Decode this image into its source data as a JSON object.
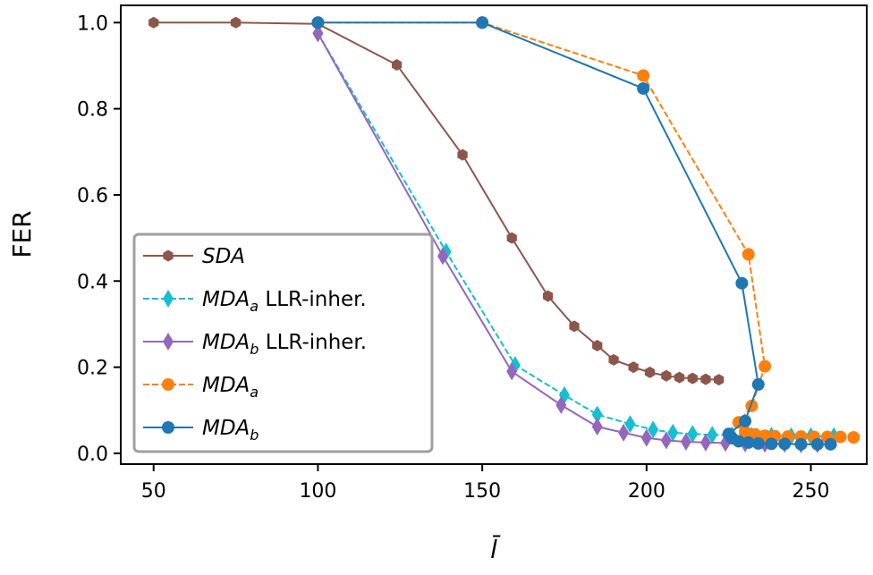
{
  "chart_data": {
    "type": "line",
    "xlabel": "l̄",
    "ylabel": "FER",
    "xlim": [
      40,
      267
    ],
    "ylim": [
      -0.025,
      1.04
    ],
    "xticks": [
      50,
      100,
      150,
      200,
      250
    ],
    "yticks": [
      0.0,
      0.2,
      0.4,
      0.6,
      0.8,
      1.0
    ],
    "xtick_labels": [
      "50",
      "100",
      "150",
      "200",
      "250"
    ],
    "ytick_labels": [
      "0.0",
      "0.2",
      "0.4",
      "0.6",
      "0.8",
      "1.0"
    ],
    "legend_position": "lower-left",
    "series": [
      {
        "name": "SDA",
        "legend_main": "SDA",
        "legend_sub": "",
        "legend_suffix": "",
        "color": "#8c564b",
        "marker": "hexagon",
        "dashed": false,
        "x": [
          50,
          75,
          100,
          124,
          144,
          159,
          170,
          178,
          185,
          190,
          196,
          201,
          206,
          210,
          214,
          218,
          222
        ],
        "y": [
          1.0,
          1.0,
          0.997,
          0.902,
          0.693,
          0.5,
          0.365,
          0.295,
          0.25,
          0.217,
          0.2,
          0.188,
          0.18,
          0.176,
          0.174,
          0.172,
          0.171
        ]
      },
      {
        "name": "MDA_a LLR-inher.",
        "legend_main": "MDA",
        "legend_sub": "a",
        "legend_suffix": " LLR-inher.",
        "color": "#17becf",
        "marker": "diamond",
        "dashed": true,
        "x": [
          100,
          139,
          160,
          175,
          185,
          195,
          202,
          208,
          214,
          220,
          226,
          232,
          238,
          244,
          250,
          257
        ],
        "y": [
          0.975,
          0.468,
          0.205,
          0.135,
          0.09,
          0.068,
          0.055,
          0.048,
          0.045,
          0.043,
          0.042,
          0.041,
          0.041,
          0.04,
          0.04,
          0.04
        ]
      },
      {
        "name": "MDA_b LLR-inher.",
        "legend_main": "MDA",
        "legend_sub": "b",
        "legend_suffix": " LLR-inher.",
        "color": "#9467bd",
        "marker": "diamond",
        "dashed": false,
        "x": [
          100,
          138,
          159,
          174,
          185,
          193,
          200,
          206,
          212,
          218,
          224,
          230,
          236,
          242,
          247,
          252
        ],
        "y": [
          0.975,
          0.458,
          0.19,
          0.112,
          0.062,
          0.048,
          0.036,
          0.03,
          0.027,
          0.025,
          0.024,
          0.023,
          0.022,
          0.022,
          0.021,
          0.021
        ]
      },
      {
        "name": "MDA_a",
        "legend_main": "MDA",
        "legend_sub": "a",
        "legend_suffix": "",
        "color": "#ff7f0e",
        "marker": "circle",
        "dashed": true,
        "x": [
          100,
          150,
          199,
          231,
          236,
          232,
          228,
          230,
          233,
          236,
          239,
          243,
          247,
          251,
          255,
          259,
          263
        ],
        "y": [
          1.0,
          1.0,
          0.877,
          0.462,
          0.202,
          0.11,
          0.072,
          0.05,
          0.044,
          0.041,
          0.04,
          0.039,
          0.039,
          0.038,
          0.038,
          0.038,
          0.037
        ]
      },
      {
        "name": "MDA_b",
        "legend_main": "MDA",
        "legend_sub": "b",
        "legend_suffix": "",
        "color": "#1f77b4",
        "marker": "circle",
        "dashed": false,
        "x": [
          100,
          150,
          199,
          229,
          234,
          230,
          225,
          226,
          228,
          231,
          234,
          238,
          242,
          247,
          252,
          256
        ],
        "y": [
          1.0,
          1.0,
          0.847,
          0.395,
          0.16,
          0.075,
          0.045,
          0.035,
          0.028,
          0.025,
          0.023,
          0.022,
          0.022,
          0.021,
          0.021,
          0.021
        ]
      }
    ]
  }
}
